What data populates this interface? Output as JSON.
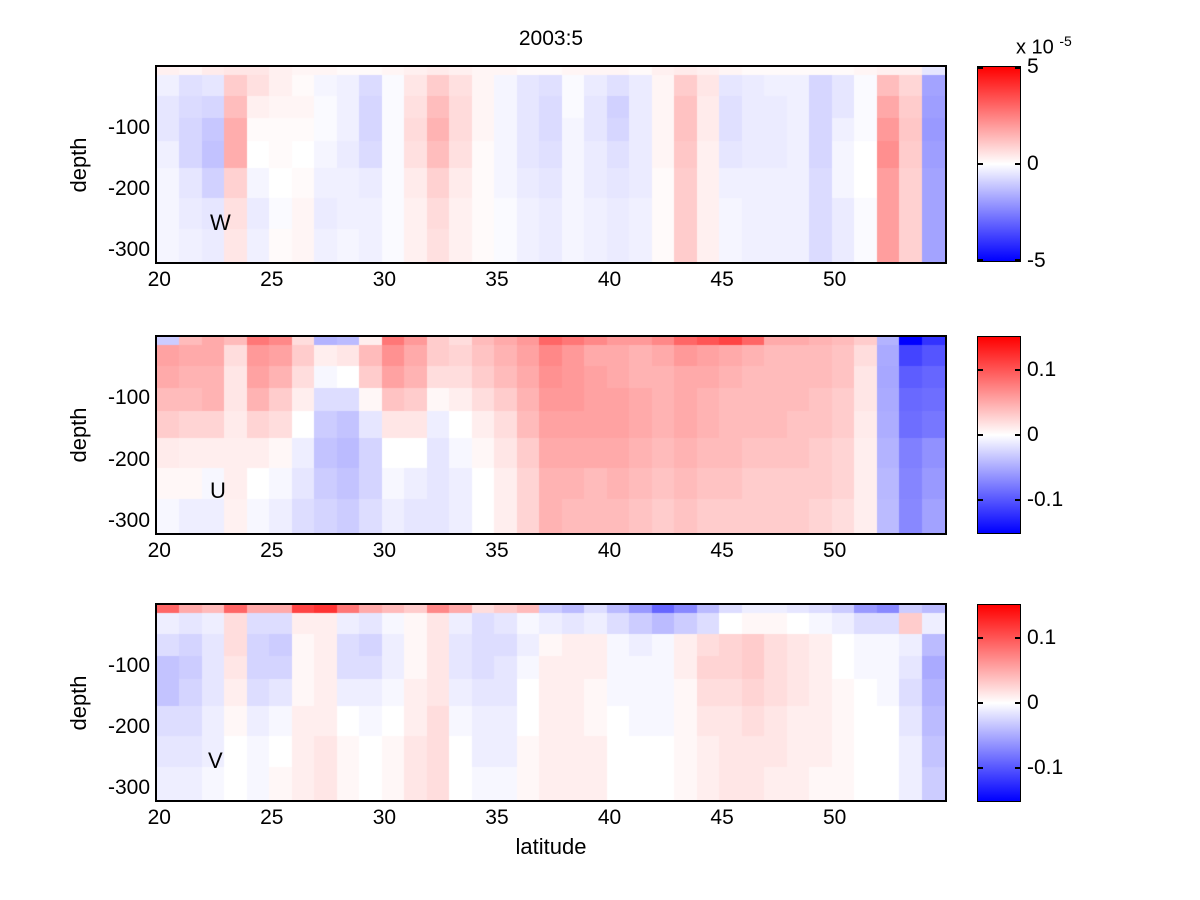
{
  "figure": {
    "title": "2003:5",
    "xlabel": "latitude",
    "ylabel": "depth",
    "background": "#ffffff"
  },
  "axes": {
    "x_ticks": [
      20,
      25,
      30,
      35,
      40,
      45,
      50
    ],
    "y_ticks": [
      -100,
      -200,
      -300
    ],
    "lat_range": [
      19.9,
      54.9
    ],
    "depth_range": [
      0,
      -320
    ],
    "lat_centers": [
      20,
      21,
      22,
      23,
      24,
      25,
      26,
      27,
      28,
      29,
      30,
      31,
      32,
      33,
      34,
      35,
      36,
      37,
      38,
      39,
      40,
      41,
      42,
      43,
      44,
      45,
      46,
      47,
      48,
      49,
      50,
      51,
      52,
      53,
      54
    ],
    "depth_edges": [
      0,
      -14,
      -48,
      -84,
      -122,
      -166,
      -215,
      -266,
      -320
    ]
  },
  "colormap": {
    "positive": "#ff0000",
    "zero": "#ffffff",
    "negative": "#0000ff"
  },
  "chart_data": [
    {
      "type": "heatmap",
      "name": "W",
      "label": "W",
      "value_units": "x 10^-5",
      "colorbar": {
        "vmax": 5,
        "vmin": -5,
        "ticks": [
          {
            "v": 5,
            "label": "5"
          },
          {
            "v": 0,
            "label": "0"
          },
          {
            "v": -5,
            "label": "-5"
          }
        ],
        "scale_prefix": "x 10",
        "scale_exponent": "-5"
      },
      "values": [
        [
          0.3,
          0.2,
          0.4,
          0.5,
          0.5,
          0.3,
          0.2,
          0.2,
          0.1,
          0.1,
          0.2,
          0.3,
          0.4,
          0.3,
          0.2,
          0.2,
          0.1,
          0.1,
          0.2,
          0.2,
          0.2,
          0.1,
          0.3,
          0.4,
          0.3,
          0.2,
          0.1,
          0.1,
          0.1,
          0.1,
          0.1,
          0.2,
          0.3,
          0.3,
          -0.5
        ],
        [
          -0.3,
          -0.6,
          -0.5,
          1.0,
          0.6,
          0.3,
          0.1,
          -0.2,
          -0.3,
          -0.7,
          -0.1,
          0.5,
          1.0,
          0.6,
          0.2,
          -0.2,
          -0.5,
          -0.6,
          -0.1,
          -0.4,
          -0.6,
          -0.4,
          0.2,
          1.0,
          0.5,
          -0.5,
          -0.4,
          -0.3,
          -0.3,
          -0.8,
          -0.5,
          -0.1,
          1.3,
          0.8,
          -1.8
        ],
        [
          -0.5,
          -0.7,
          -0.8,
          1.3,
          0.3,
          0.2,
          0.2,
          -0.1,
          -0.3,
          -0.8,
          -0.1,
          0.6,
          1.3,
          0.7,
          0.2,
          -0.2,
          -0.5,
          -0.7,
          -0.1,
          -0.5,
          -0.9,
          -0.4,
          0.2,
          1.2,
          0.4,
          -0.6,
          -0.4,
          -0.4,
          -0.3,
          -0.8,
          -0.5,
          -0.1,
          1.7,
          1.0,
          -1.9
        ],
        [
          -0.5,
          -0.8,
          -1.1,
          1.6,
          0.1,
          0.1,
          0.1,
          -0.1,
          -0.3,
          -0.8,
          -0.1,
          0.7,
          1.5,
          0.7,
          0.2,
          -0.2,
          -0.5,
          -0.7,
          -0.2,
          -0.5,
          -0.8,
          -0.4,
          0.2,
          1.2,
          0.4,
          -0.6,
          -0.4,
          -0.4,
          -0.3,
          -0.8,
          -0.3,
          -0.1,
          2.0,
          1.1,
          -2.0
        ],
        [
          -0.3,
          -0.8,
          -1.2,
          1.6,
          0.0,
          0.1,
          0.0,
          -0.2,
          -0.4,
          -0.7,
          -0.1,
          0.6,
          1.3,
          0.6,
          0.1,
          -0.2,
          -0.5,
          -0.6,
          -0.2,
          -0.4,
          -0.6,
          -0.4,
          0.2,
          1.1,
          0.3,
          -0.5,
          -0.4,
          -0.4,
          -0.3,
          -0.8,
          -0.2,
          0.0,
          2.2,
          1.0,
          -1.9
        ],
        [
          -0.2,
          -0.5,
          -0.9,
          0.9,
          -0.2,
          0.0,
          0.1,
          -0.3,
          -0.3,
          -0.4,
          -0.1,
          0.4,
          0.9,
          0.4,
          0.1,
          -0.2,
          -0.4,
          -0.5,
          -0.2,
          -0.4,
          -0.5,
          -0.4,
          0.1,
          1.0,
          0.3,
          -0.3,
          -0.3,
          -0.3,
          -0.3,
          -0.7,
          -0.2,
          0.0,
          1.9,
          0.9,
          -1.8
        ],
        [
          -0.2,
          -0.4,
          -0.5,
          0.6,
          -0.4,
          -0.1,
          0.2,
          -0.4,
          -0.3,
          -0.3,
          -0.1,
          0.3,
          0.7,
          0.3,
          0.1,
          -0.1,
          -0.3,
          -0.4,
          -0.2,
          -0.3,
          -0.4,
          -0.3,
          0.1,
          1.0,
          0.3,
          -0.2,
          -0.3,
          -0.3,
          -0.3,
          -0.7,
          -0.4,
          -0.1,
          1.9,
          0.9,
          -1.8
        ],
        [
          -0.2,
          -0.3,
          -0.4,
          0.5,
          -0.3,
          0.1,
          0.2,
          -0.3,
          -0.2,
          -0.3,
          -0.1,
          0.3,
          0.6,
          0.3,
          0.1,
          -0.1,
          -0.3,
          -0.4,
          -0.2,
          -0.3,
          -0.4,
          -0.3,
          0.1,
          1.0,
          0.3,
          -0.2,
          -0.3,
          -0.3,
          -0.3,
          -0.7,
          -0.4,
          -0.1,
          1.9,
          0.9,
          -1.8
        ]
      ]
    },
    {
      "type": "heatmap",
      "name": "U",
      "label": "U",
      "value_units": "",
      "colorbar": {
        "vmax": 0.15,
        "vmin": -0.15,
        "ticks": [
          {
            "v": 0.1,
            "label": "0.1"
          },
          {
            "v": 0,
            "label": "0"
          },
          {
            "v": -0.1,
            "label": "-0.1"
          }
        ]
      },
      "values": [
        [
          -0.03,
          0.04,
          0.05,
          0.04,
          0.08,
          0.07,
          0.02,
          -0.045,
          -0.04,
          0.01,
          0.08,
          0.06,
          0.03,
          0.02,
          0.04,
          0.05,
          0.06,
          0.09,
          0.08,
          0.07,
          0.06,
          0.06,
          0.07,
          0.09,
          0.1,
          0.11,
          0.09,
          0.05,
          0.05,
          0.045,
          0.04,
          0.03,
          -0.045,
          -0.15,
          -0.12
        ],
        [
          0.055,
          0.05,
          0.05,
          0.02,
          0.06,
          0.055,
          0.03,
          0.01,
          0.015,
          0.04,
          0.065,
          0.05,
          0.03,
          0.025,
          0.035,
          0.045,
          0.055,
          0.07,
          0.06,
          0.05,
          0.05,
          0.045,
          0.05,
          0.06,
          0.055,
          0.05,
          0.045,
          0.04,
          0.04,
          0.04,
          0.035,
          0.02,
          -0.05,
          -0.11,
          -0.1
        ],
        [
          0.05,
          0.045,
          0.045,
          0.015,
          0.055,
          0.045,
          0.02,
          -0.005,
          0,
          0.03,
          0.055,
          0.045,
          0.02,
          0.02,
          0.03,
          0.04,
          0.05,
          0.065,
          0.06,
          0.055,
          0.05,
          0.045,
          0.045,
          0.05,
          0.05,
          0.045,
          0.04,
          0.04,
          0.04,
          0.04,
          0.035,
          0.015,
          -0.052,
          -0.095,
          -0.09
        ],
        [
          0.04,
          0.04,
          0.045,
          0.015,
          0.045,
          0.03,
          0.01,
          -0.02,
          -0.02,
          0.005,
          0.035,
          0.03,
          0.005,
          0.01,
          0.02,
          0.03,
          0.045,
          0.06,
          0.06,
          0.055,
          0.055,
          0.05,
          0.045,
          0.05,
          0.045,
          0.04,
          0.04,
          0.04,
          0.04,
          0.035,
          0.03,
          0.015,
          -0.05,
          -0.088,
          -0.085
        ],
        [
          0.03,
          0.025,
          0.025,
          0.012,
          0.025,
          0.02,
          0,
          -0.03,
          -0.035,
          -0.015,
          0.015,
          0.015,
          -0.01,
          0,
          0.01,
          0.02,
          0.04,
          0.055,
          0.055,
          0.055,
          0.055,
          0.05,
          0.045,
          0.05,
          0.045,
          0.04,
          0.04,
          0.04,
          0.035,
          0.035,
          0.03,
          0.012,
          -0.048,
          -0.085,
          -0.08
        ],
        [
          0.012,
          0.01,
          0.01,
          0.01,
          0.01,
          0.005,
          -0.01,
          -0.035,
          -0.04,
          -0.025,
          0,
          0,
          -0.015,
          -0.005,
          0.005,
          0.015,
          0.03,
          0.05,
          0.05,
          0.05,
          0.05,
          0.045,
          0.04,
          0.045,
          0.04,
          0.04,
          0.035,
          0.035,
          0.035,
          0.03,
          0.025,
          0.01,
          -0.045,
          -0.075,
          -0.065
        ],
        [
          0.005,
          0.005,
          -0.005,
          0.01,
          0,
          -0.005,
          -0.015,
          -0.03,
          -0.035,
          -0.025,
          -0.005,
          -0.01,
          -0.015,
          -0.01,
          0,
          0.01,
          0.025,
          0.045,
          0.045,
          0.04,
          0.045,
          0.04,
          0.035,
          0.04,
          0.035,
          0.035,
          0.03,
          0.03,
          0.03,
          0.03,
          0.025,
          0.01,
          -0.042,
          -0.072,
          -0.06
        ],
        [
          -0.005,
          -0.01,
          -0.01,
          0.008,
          -0.005,
          -0.01,
          -0.02,
          -0.025,
          -0.03,
          -0.02,
          -0.01,
          -0.015,
          -0.015,
          -0.01,
          0,
          0.01,
          0.025,
          0.045,
          0.04,
          0.04,
          0.04,
          0.035,
          0.03,
          0.035,
          0.03,
          0.03,
          0.03,
          0.03,
          0.03,
          0.025,
          0.02,
          0.01,
          -0.04,
          -0.07,
          -0.055
        ]
      ]
    },
    {
      "type": "heatmap",
      "name": "V",
      "label": "V",
      "value_units": "",
      "colorbar": {
        "vmax": 0.15,
        "vmin": -0.15,
        "ticks": [
          {
            "v": 0.1,
            "label": "0.1"
          },
          {
            "v": 0,
            "label": "0"
          },
          {
            "v": -0.1,
            "label": "-0.1"
          }
        ]
      },
      "values": [
        [
          0.09,
          0.05,
          0.04,
          0.09,
          0.05,
          0.05,
          0.11,
          0.12,
          0.08,
          0.05,
          0.04,
          0.03,
          0.07,
          0.05,
          0.02,
          0.03,
          0.04,
          -0.03,
          -0.04,
          -0.02,
          -0.04,
          -0.06,
          -0.09,
          -0.07,
          -0.04,
          -0.02,
          -0.01,
          -0.01,
          -0.015,
          -0.02,
          -0.03,
          -0.06,
          -0.07,
          -0.03,
          -0.04
        ],
        [
          -0.01,
          -0.015,
          -0.01,
          0.02,
          -0.02,
          -0.02,
          0.01,
          0.01,
          -0.01,
          -0.015,
          -0.005,
          0.005,
          0.015,
          -0.01,
          -0.02,
          -0.015,
          -0.005,
          -0.01,
          -0.015,
          -0.01,
          -0.02,
          -0.03,
          -0.04,
          -0.03,
          -0.02,
          0,
          0.005,
          0.005,
          0,
          -0.005,
          -0.01,
          -0.02,
          -0.02,
          0.03,
          -0.01
        ],
        [
          -0.02,
          -0.025,
          -0.015,
          0.02,
          -0.025,
          -0.03,
          0.005,
          0.01,
          -0.02,
          -0.025,
          -0.01,
          0.005,
          0.015,
          -0.015,
          -0.02,
          -0.02,
          -0.01,
          0.005,
          0.01,
          0.01,
          -0.005,
          -0.01,
          -0.005,
          0.01,
          0.02,
          0.025,
          0.03,
          0.02,
          0.015,
          0.01,
          0,
          -0.005,
          -0.005,
          -0.01,
          -0.04
        ],
        [
          -0.035,
          -0.03,
          -0.015,
          0.015,
          -0.025,
          -0.025,
          0.005,
          0.01,
          -0.02,
          -0.02,
          -0.01,
          0.005,
          0.015,
          -0.015,
          -0.02,
          -0.015,
          -0.005,
          0.01,
          0.01,
          0.01,
          -0.005,
          -0.005,
          -0.005,
          0.01,
          0.025,
          0.025,
          0.03,
          0.02,
          0.015,
          0.01,
          0,
          -0.005,
          -0.005,
          -0.015,
          -0.05
        ],
        [
          -0.035,
          -0.025,
          -0.015,
          0.01,
          -0.02,
          -0.015,
          0.005,
          0.01,
          -0.01,
          -0.01,
          -0.005,
          0.01,
          0.015,
          -0.01,
          -0.015,
          -0.015,
          0,
          0.01,
          0.01,
          0.005,
          -0.005,
          -0.005,
          -0.005,
          0.005,
          0.02,
          0.02,
          0.025,
          0.02,
          0.015,
          0.01,
          0.005,
          0,
          -0.005,
          -0.02,
          -0.045
        ],
        [
          -0.02,
          -0.02,
          -0.01,
          0.005,
          -0.01,
          -0.005,
          0.01,
          0.01,
          0,
          -0.005,
          0,
          0.01,
          0.02,
          -0.005,
          -0.01,
          -0.01,
          0,
          0.01,
          0.01,
          0.005,
          0,
          -0.005,
          -0.005,
          0.005,
          0.015,
          0.015,
          0.02,
          0.015,
          0.01,
          0.01,
          0.005,
          0,
          0,
          -0.015,
          -0.04
        ],
        [
          -0.015,
          -0.015,
          -0.01,
          0,
          -0.005,
          0,
          0.01,
          0.015,
          0.005,
          0,
          0.005,
          0.015,
          0.02,
          0,
          -0.01,
          -0.01,
          0.005,
          0.01,
          0.01,
          0.01,
          0,
          0,
          0,
          0.005,
          0.01,
          0.015,
          0.015,
          0.015,
          0.01,
          0.01,
          0.005,
          0,
          0,
          -0.01,
          -0.035
        ],
        [
          -0.01,
          -0.01,
          -0.005,
          0,
          -0.005,
          0.005,
          0.01,
          0.015,
          0.005,
          0,
          0.005,
          0.015,
          0.02,
          0,
          -0.005,
          -0.005,
          0.005,
          0.01,
          0.01,
          0.01,
          0,
          0,
          0,
          0.005,
          0.01,
          0.015,
          0.015,
          0.01,
          0.01,
          0.005,
          0.005,
          0,
          0,
          -0.01,
          -0.03
        ]
      ]
    }
  ]
}
